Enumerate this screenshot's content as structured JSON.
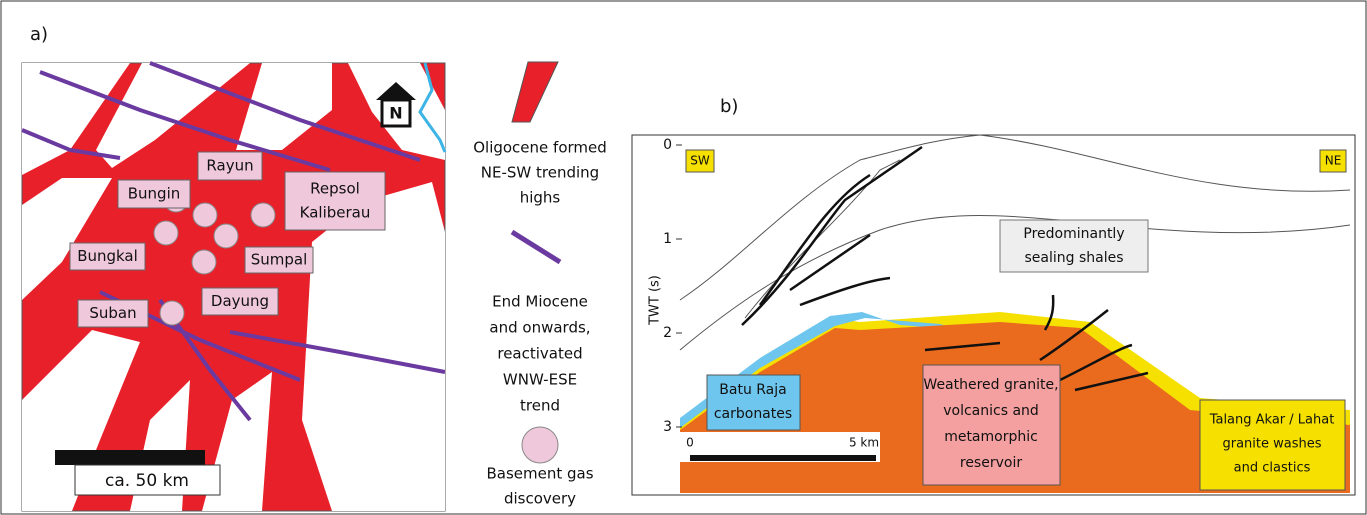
{
  "panel_a": {
    "label": "a)",
    "north": "N",
    "scale_bar": "ca. 50 km",
    "fields": [
      {
        "lines": [
          "Bungin"
        ]
      },
      {
        "lines": [
          "Rayun"
        ]
      },
      {
        "lines": [
          "Repsol",
          "Kaliberau"
        ]
      },
      {
        "lines": [
          "Bungkal"
        ]
      },
      {
        "lines": [
          "Sumpal"
        ]
      },
      {
        "lines": [
          "Suban"
        ]
      },
      {
        "lines": [
          "Dayung"
        ]
      }
    ],
    "legend": [
      {
        "lines": [
          "Oligocene formed",
          "NE-SW trending",
          "highs"
        ]
      },
      {
        "lines": [
          "End Miocene",
          "and onwards,",
          "reactivated",
          "WNW-ESE",
          "trend"
        ]
      },
      {
        "lines": [
          "Basement gas",
          "discovery"
        ]
      }
    ]
  },
  "panel_b": {
    "label": "b)",
    "left_end": "SW",
    "right_end": "NE",
    "axis_title": "TWT (s)",
    "ticks": [
      0,
      1,
      2,
      3
    ],
    "units": [
      {
        "lines": [
          "Predominantly",
          "sealing shales"
        ]
      },
      {
        "lines": [
          "Batu Raja",
          "carbonates"
        ]
      },
      {
        "lines": [
          "Weathered granite,",
          "volcanics and",
          "metamorphic",
          "reservoir"
        ]
      },
      {
        "lines": [
          "Talang Akar / Lahat",
          "granite washes",
          "and clastics"
        ]
      }
    ],
    "scale_start": "0",
    "scale_end": "5 km"
  }
}
